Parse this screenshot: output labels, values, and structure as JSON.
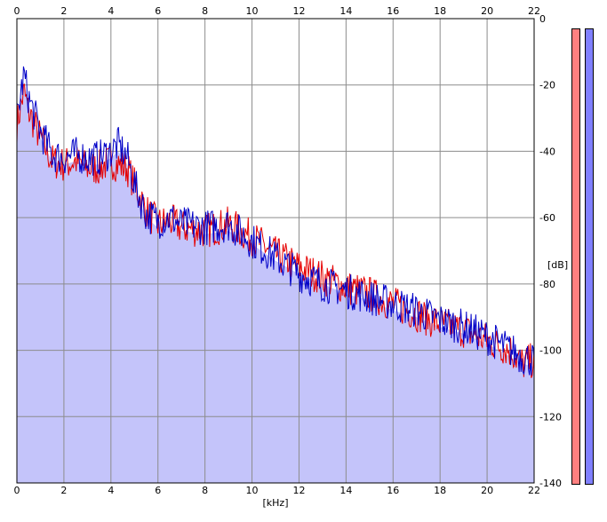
{
  "chart_data": {
    "type": "area",
    "xlabel": "[kHz]",
    "ylabel": "[dB]",
    "xlim": [
      0,
      22
    ],
    "ylim": [
      -140,
      0
    ],
    "x_ticks": [
      "0",
      "2",
      "4",
      "6",
      "8",
      "10",
      "12",
      "14",
      "16",
      "18",
      "20",
      "22"
    ],
    "y_ticks": [
      "0",
      "-20",
      "-40",
      "-60",
      "-80",
      "-100",
      "-120",
      "-140"
    ],
    "grid": true,
    "colors": {
      "fill": "#c4c4fa",
      "left_channel": "#e60000",
      "right_channel": "#0000c8",
      "left_meter": "#ff8080",
      "right_meter": "#8080ff"
    },
    "series": [
      {
        "x": [
          0,
          0.3,
          0.5,
          1,
          1.5,
          2,
          2.5,
          3,
          3.5,
          4,
          4.3,
          4.7,
          5,
          5.5,
          6,
          6.5,
          7,
          8,
          9,
          10,
          11,
          12,
          13,
          14,
          15,
          16,
          17,
          18,
          19,
          20,
          21,
          21.5,
          22
        ],
        "values": [
          -32,
          -22,
          -28,
          -36,
          -43,
          -44,
          -43,
          -45,
          -45,
          -43,
          -44,
          -45,
          -50,
          -58,
          -62,
          -61,
          -63,
          -64,
          -62,
          -66,
          -71,
          -75,
          -78,
          -81,
          -83,
          -86,
          -89,
          -92,
          -94,
          -97,
          -100,
          -104,
          -103
        ]
      },
      {
        "x": [
          0,
          0.3,
          0.5,
          1,
          1.5,
          2,
          2.5,
          3,
          3.5,
          4,
          4.3,
          4.7,
          5,
          5.5,
          6,
          6.5,
          7,
          8,
          9,
          10,
          11,
          12,
          13,
          14,
          15,
          16,
          17,
          18,
          19,
          20,
          21,
          21.5,
          22
        ],
        "values": [
          -30,
          -17,
          -24,
          -34,
          -41,
          -42,
          -41,
          -42,
          -42,
          -40,
          -38,
          -42,
          -50,
          -59,
          -61,
          -60,
          -62,
          -63,
          -62,
          -67,
          -72,
          -77,
          -80,
          -82,
          -84,
          -86,
          -88,
          -91,
          -93,
          -96,
          -100,
          -102,
          -103
        ]
      }
    ]
  }
}
